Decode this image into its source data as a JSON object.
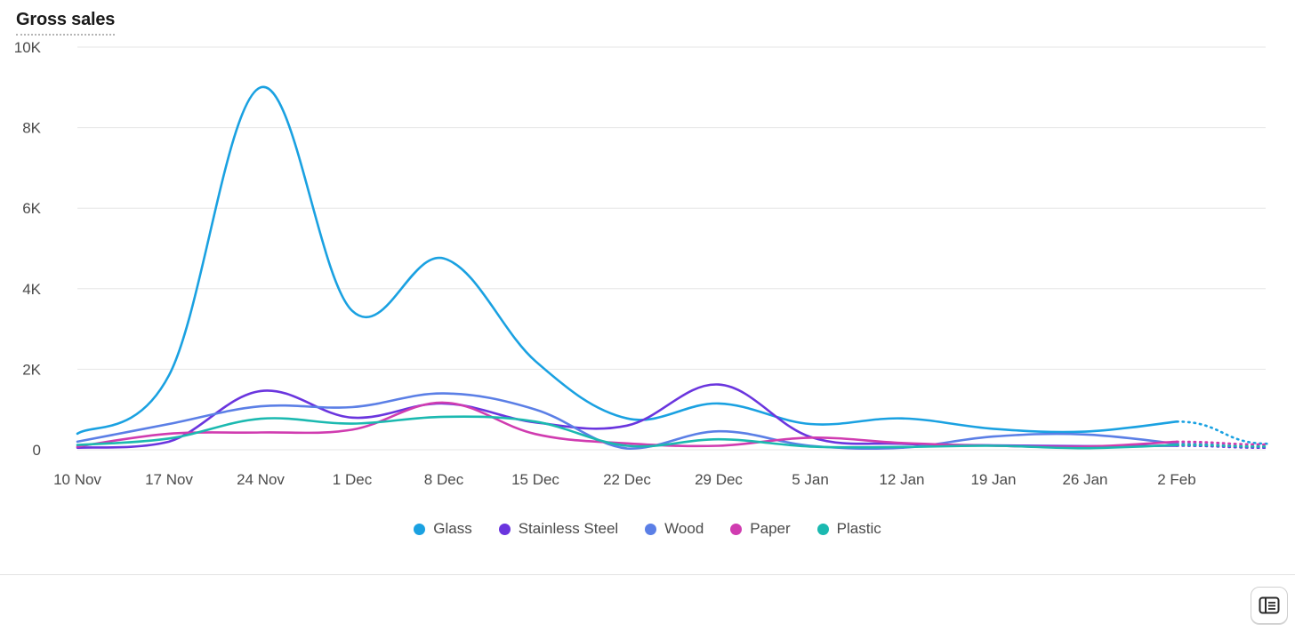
{
  "colors": {
    "grid": "#e6e6e6",
    "axis_text": "#4a4a4a"
  },
  "chart_data": {
    "type": "line",
    "title": "Gross sales",
    "xlabel": "",
    "ylabel": "",
    "ylim": [
      0,
      10000
    ],
    "yticks": [
      0,
      2000,
      4000,
      6000,
      8000,
      10000
    ],
    "ytick_labels": [
      "0",
      "2K",
      "4K",
      "6K",
      "8K",
      "10K"
    ],
    "x_tick_labels": [
      "10 Nov",
      "17 Nov",
      "24 Nov",
      "1 Dec",
      "8 Dec",
      "15 Dec",
      "22 Dec",
      "29 Dec",
      "5 Jan",
      "12 Jan",
      "19 Jan",
      "26 Jan",
      "2 Feb"
    ],
    "x_weeks": [
      0,
      1,
      2,
      3,
      4,
      5,
      6,
      7,
      8,
      9,
      10,
      11,
      12
    ],
    "projection_week": 13,
    "legend_position": "bottom-center",
    "series": [
      {
        "name": "Glass",
        "color": "#1aa1e1",
        "values": [
          400,
          1850,
          9000,
          3450,
          4750,
          2200,
          780,
          1150,
          640,
          780,
          520,
          450,
          700
        ],
        "projected": 150
      },
      {
        "name": "Stainless Steel",
        "color": "#6a35de",
        "values": [
          50,
          200,
          1460,
          800,
          1150,
          680,
          600,
          1620,
          320,
          150,
          110,
          90,
          100
        ],
        "projected": 50
      },
      {
        "name": "Wood",
        "color": "#5b7fe6",
        "values": [
          200,
          640,
          1080,
          1060,
          1400,
          1000,
          30,
          460,
          100,
          50,
          330,
          380,
          150
        ],
        "projected": 80
      },
      {
        "name": "Paper",
        "color": "#d03cb0",
        "values": [
          80,
          400,
          430,
          500,
          1170,
          390,
          160,
          100,
          300,
          170,
          100,
          80,
          200
        ],
        "projected": 130
      },
      {
        "name": "Plastic",
        "color": "#1bb9b0",
        "values": [
          120,
          280,
          770,
          650,
          820,
          700,
          100,
          260,
          80,
          70,
          100,
          40,
          120
        ],
        "projected": 80
      }
    ]
  }
}
